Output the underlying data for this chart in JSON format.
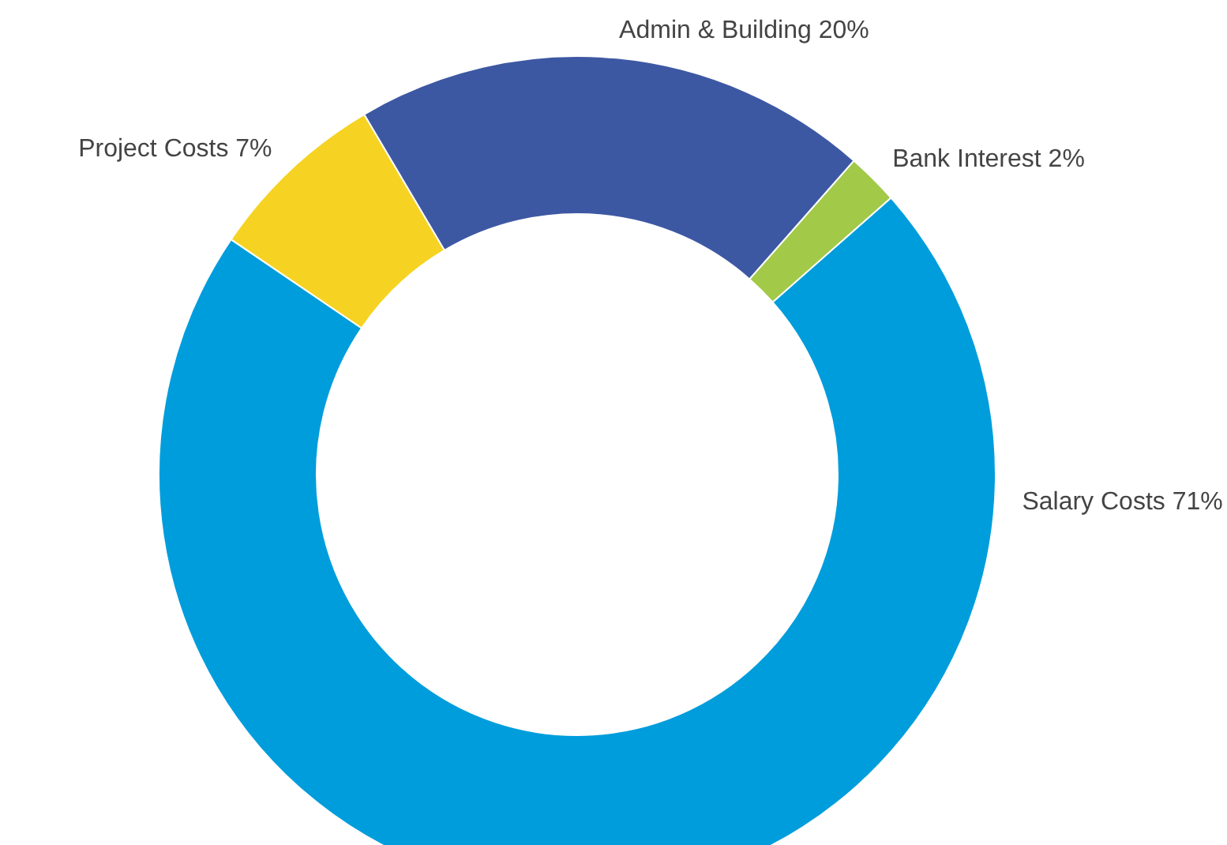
{
  "chart_data": {
    "type": "donut",
    "categories": [
      "Bank Interest",
      "Salary Costs",
      "Project Costs",
      "Admin & Building"
    ],
    "values": [
      2,
      71,
      7,
      20
    ],
    "colors": [
      "#a2c948",
      "#009ddc",
      "#f6d322",
      "#3d58a3"
    ],
    "value_labels": [
      "2%",
      "71%",
      "7%",
      "20%"
    ]
  }
}
